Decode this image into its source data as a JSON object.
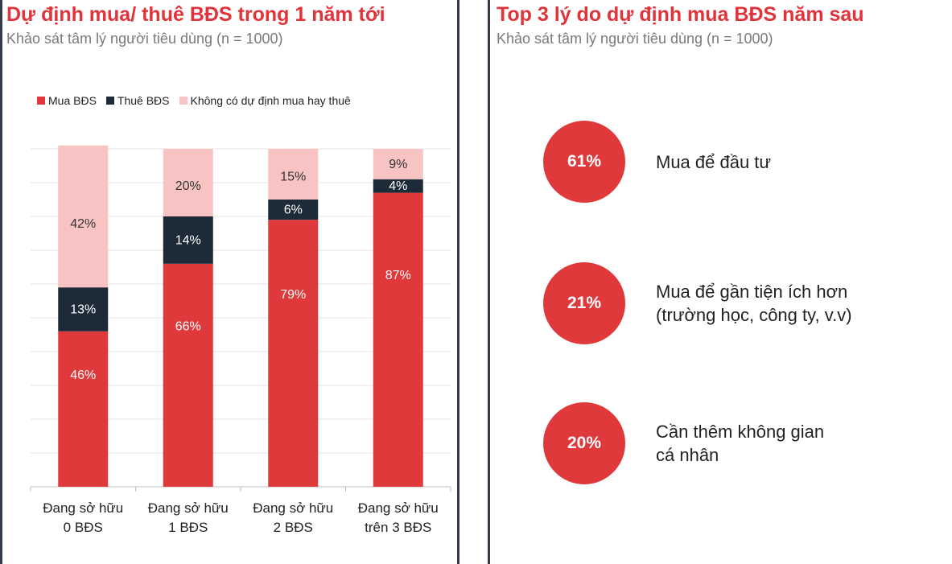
{
  "left_panel": {
    "title": "Dự định mua/ thuê BĐS trong 1 năm tới",
    "subtitle": "Khảo sát tâm lý người tiêu dùng (n = 1000)"
  },
  "right_panel": {
    "title": "Top 3 lý do dự định mua BĐS năm sau",
    "subtitle": "Khảo sát tâm lý người tiêu dùng (n = 1000)",
    "reasons": [
      {
        "percent": "61%",
        "text_line1": "Mua để đầu tư",
        "text_line2": ""
      },
      {
        "percent": "21%",
        "text_line1": "Mua để gần tiện ích hơn",
        "text_line2": "(trường học, công ty, v.v)"
      },
      {
        "percent": "20%",
        "text_line1": "Cần thêm không gian",
        "text_line2": "cá nhân"
      }
    ]
  },
  "chart_data": {
    "type": "bar",
    "stacked": true,
    "title": "Dự định mua/ thuê BĐS trong 1 năm tới",
    "categories": [
      [
        "Đang sở hữu",
        "0 BĐS"
      ],
      [
        "Đang sở hữu",
        "1 BĐS"
      ],
      [
        "Đang sở hữu",
        "2 BĐS"
      ],
      [
        "Đang sở hữu",
        "trên 3 BĐS"
      ]
    ],
    "series": [
      {
        "name": "Mua BĐS",
        "values": [
          46,
          66,
          79,
          87
        ],
        "color": "#e0393c",
        "label_color": "#ffffff"
      },
      {
        "name": "Thuê BĐS",
        "values": [
          13,
          14,
          6,
          4
        ],
        "color": "#1d2a38",
        "label_color": "#ffffff"
      },
      {
        "name": "Không có dự định mua hay thuê",
        "values": [
          42,
          20,
          15,
          9
        ],
        "color": "#f7c3c3",
        "label_color": "#333333"
      }
    ],
    "ylim": [
      0,
      100
    ],
    "grid": true,
    "legend_position": "top"
  }
}
